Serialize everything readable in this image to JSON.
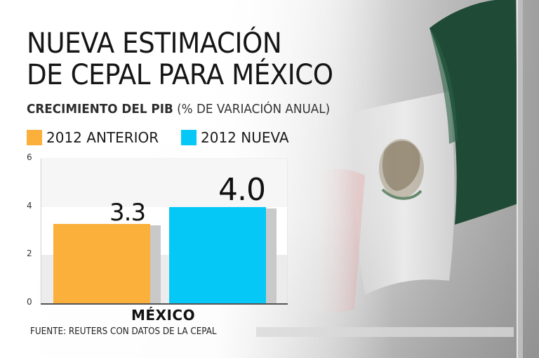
{
  "title_line1": "NUEVA ESTIMACIÓN",
  "title_line2": "DE CEPAL PARA MÉXICO",
  "subtitle_bold": "CRECIMIENTO DEL PIB",
  "subtitle_rest": " (% DE VARIACIÓN ANUAL)",
  "source": "FUENTE: REUTERS CON DATOS DE LA CEPAL",
  "colors": {
    "anterior": "#FBB03B",
    "nueva": "#05C8F7",
    "flag_green": "#1f4a35",
    "flag_red": "#d85a5a"
  },
  "icons": [
    "mexico-flag-icon",
    "flag-pole-icon"
  ],
  "chart_data": {
    "type": "bar",
    "title": "CRECIMIENTO DEL PIB (% DE VARIACIÓN ANUAL)",
    "categories": [
      "MÉXICO"
    ],
    "series": [
      {
        "name": "2012 ANTERIOR",
        "values": [
          3.3
        ],
        "label": "3.3"
      },
      {
        "name": "2012 NUEVA",
        "values": [
          4.0
        ],
        "label": "4.0"
      }
    ],
    "xlabel": "",
    "ylabel": "",
    "ylim": [
      0,
      6
    ],
    "yticks": [
      "0",
      "2",
      "4",
      "6"
    ],
    "legend": "top-left"
  }
}
